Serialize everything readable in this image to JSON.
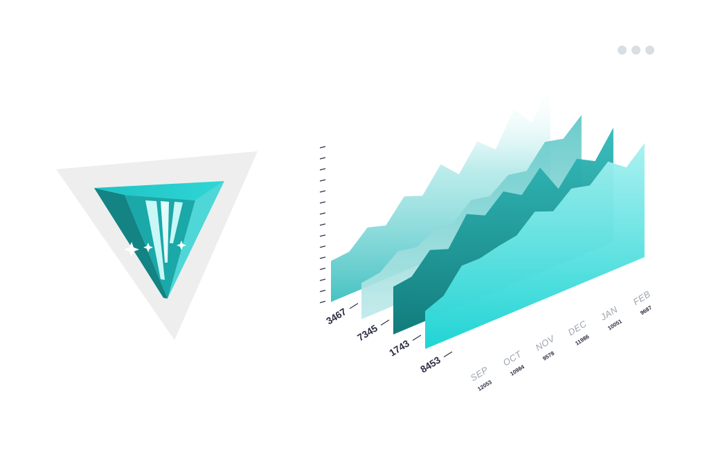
{
  "window": {
    "menu_icon": "more-dots-icon",
    "dot_color": "#d9dde4"
  },
  "logo": {
    "icon": "triangle-prism-logo-icon",
    "colors": {
      "frame": "#eeeeee",
      "teal_light": "#4fd6d6",
      "teal_mid": "#1fbcbc",
      "teal_dark": "#138383",
      "stripe": "#c8f7f7"
    }
  },
  "chart_data": {
    "type": "area",
    "style": "3d-stacked-layers",
    "categories": [
      "SEP",
      "OCT",
      "NOV",
      "DEC",
      "JAN",
      "FEB"
    ],
    "category_values": [
      "12053",
      "10984",
      "9578",
      "11986",
      "10051",
      "9687"
    ],
    "series": [
      {
        "label": "3467",
        "color": "#4cc9c9",
        "values": [
          27,
          38,
          52,
          60,
          71,
          84
        ]
      },
      {
        "label": "7345",
        "color": "#57c7c7",
        "values": [
          25,
          34,
          44,
          52,
          64,
          77
        ]
      },
      {
        "label": "1743",
        "color": "#138f8f",
        "values": [
          30,
          44,
          56,
          64,
          60,
          72
        ]
      },
      {
        "label": "8453",
        "color": "#2fd2d2",
        "values": [
          22,
          38,
          46,
          55,
          60,
          66
        ]
      }
    ],
    "grid": false,
    "legend": "none",
    "axis_ticks": 15
  }
}
